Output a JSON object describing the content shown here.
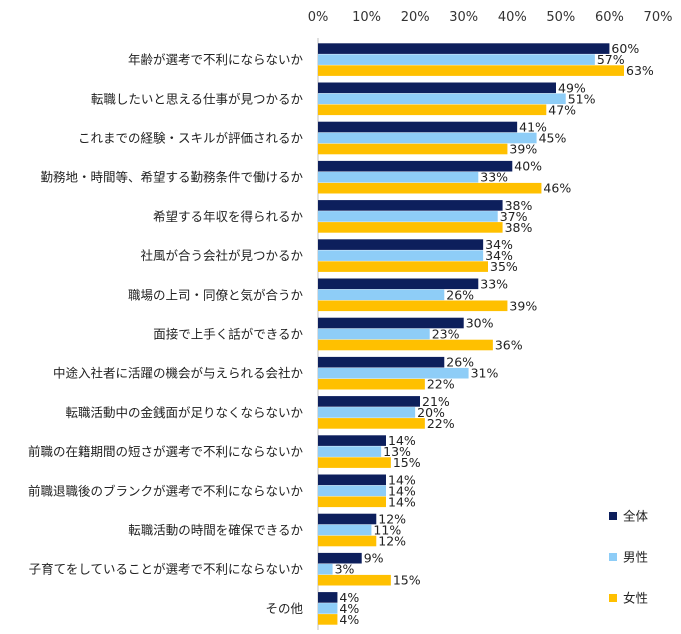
{
  "chart_data": {
    "type": "bar",
    "orientation": "horizontal",
    "title": "",
    "xlabel": "",
    "ylabel": "",
    "xlim": [
      0,
      70
    ],
    "xticks": [
      "0%",
      "10%",
      "20%",
      "30%",
      "40%",
      "50%",
      "60%",
      "70%"
    ],
    "grid": false,
    "legend_position": "right-bottom",
    "categories": [
      "年齢が選考で不利にならないか",
      "転職したいと思える仕事が見つかるか",
      "これまでの経験・スキルが評価されるか",
      "勤務地・時間等、希望する勤務条件で働けるか",
      "希望する年収を得られるか",
      "社風が合う会社が見つかるか",
      "職場の上司・同僚と気が合うか",
      "面接で上手く話ができるか",
      "中途入社者に活躍の機会が与えられる会社か",
      "転職活動中の金銭面が足りなくならないか",
      "前職の在籍期間の短さが選考で不利にならないか",
      "前職退職後のブランクが選考で不利にならないか",
      "転職活動の時間を確保できるか",
      "子育てをしていることが選考で不利にならないか",
      "その他"
    ],
    "series": [
      {
        "name": "全体",
        "color": "#0d1f5c",
        "values": [
          60,
          49,
          41,
          40,
          38,
          34,
          33,
          30,
          26,
          21,
          14,
          14,
          12,
          9,
          4
        ]
      },
      {
        "name": "男性",
        "color": "#8ecdf7",
        "values": [
          57,
          51,
          45,
          33,
          37,
          34,
          26,
          23,
          31,
          20,
          13,
          14,
          11,
          3,
          4
        ]
      },
      {
        "name": "女性",
        "color": "#ffc000",
        "values": [
          63,
          47,
          39,
          46,
          38,
          35,
          39,
          36,
          22,
          22,
          15,
          14,
          12,
          15,
          4
        ]
      }
    ],
    "value_suffix": "%"
  }
}
